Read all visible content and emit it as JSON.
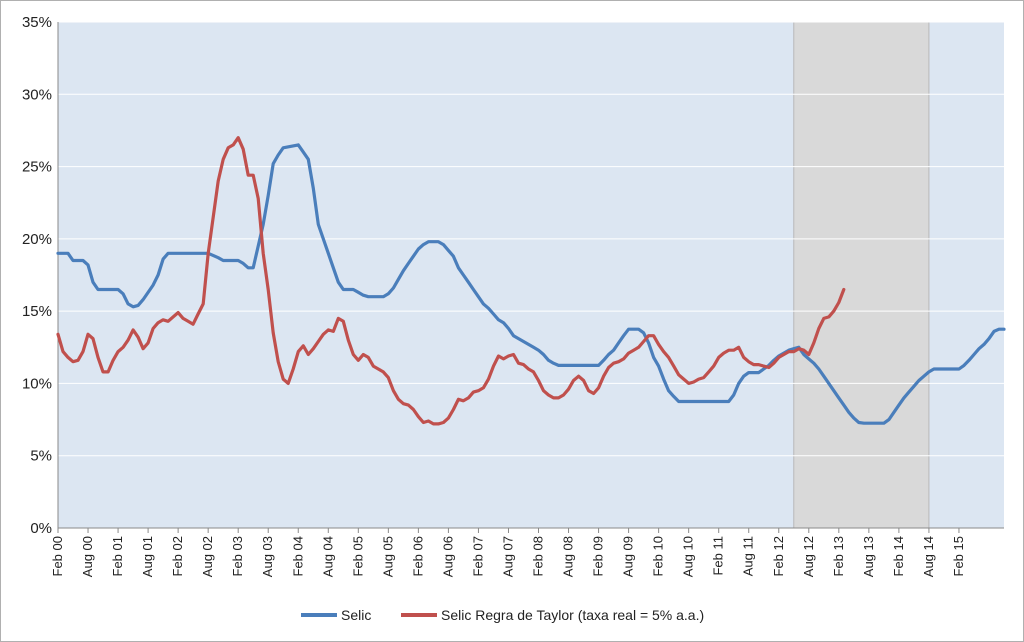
{
  "chart_data": {
    "type": "line",
    "title": "",
    "xlabel": "",
    "ylabel": "",
    "x_start": "Feb 00",
    "months_total": 190,
    "ylim": [
      0,
      35
    ],
    "y_ticks": [
      "0%",
      "5%",
      "10%",
      "15%",
      "20%",
      "25%",
      "30%",
      "35%"
    ],
    "x_tick_labels": [
      "Feb 00",
      "Aug 00",
      "Feb 01",
      "Aug 01",
      "Feb 02",
      "Aug 02",
      "Feb 03",
      "Aug 03",
      "Feb 04",
      "Aug 04",
      "Feb 05",
      "Aug 05",
      "Feb 06",
      "Aug 06",
      "Feb 07",
      "Aug 07",
      "Feb 08",
      "Aug 08",
      "Feb 09",
      "Aug 09",
      "Feb 10",
      "Aug 10",
      "Feb 11",
      "Aug 11",
      "Feb 12",
      "Aug 12",
      "Feb 13",
      "Aug 13",
      "Feb 14",
      "Aug 14",
      "Feb 15"
    ],
    "shaded_region": {
      "from_month": 147,
      "to_month": 174,
      "color": "#d9d9d9"
    },
    "colors": {
      "plot_bg": "#dce6f2",
      "grid": "#ffffff"
    },
    "legend_position": "bottom",
    "series": [
      {
        "name": "Selic",
        "color": "#4a7ebb",
        "points": [
          [
            0,
            19
          ],
          [
            2,
            19
          ],
          [
            3,
            18.5
          ],
          [
            5,
            18.5
          ],
          [
            6,
            18.2
          ],
          [
            7,
            17
          ],
          [
            8,
            16.5
          ],
          [
            12,
            16.5
          ],
          [
            13,
            16.2
          ],
          [
            14,
            15.5
          ],
          [
            15,
            15.3
          ],
          [
            16,
            15.4
          ],
          [
            17,
            15.8
          ],
          [
            19,
            16.8
          ],
          [
            20,
            17.5
          ],
          [
            21,
            18.6
          ],
          [
            22,
            19
          ],
          [
            30,
            19
          ],
          [
            32,
            18.7
          ],
          [
            33,
            18.5
          ],
          [
            36,
            18.5
          ],
          [
            37,
            18.3
          ],
          [
            38,
            18
          ],
          [
            39,
            18
          ],
          [
            40,
            19.5
          ],
          [
            41,
            21
          ],
          [
            42,
            23
          ],
          [
            43,
            25.2
          ],
          [
            44,
            25.8
          ],
          [
            45,
            26.3
          ],
          [
            48,
            26.5
          ],
          [
            49,
            26
          ],
          [
            50,
            25.5
          ],
          [
            51,
            23.5
          ],
          [
            52,
            21
          ],
          [
            53,
            20
          ],
          [
            54,
            19
          ],
          [
            55,
            18
          ],
          [
            56,
            17
          ],
          [
            57,
            16.5
          ],
          [
            59,
            16.5
          ],
          [
            60,
            16.3
          ],
          [
            61,
            16.1
          ],
          [
            62,
            16
          ],
          [
            65,
            16
          ],
          [
            66,
            16.2
          ],
          [
            67,
            16.6
          ],
          [
            68,
            17.2
          ],
          [
            69,
            17.8
          ],
          [
            70,
            18.3
          ],
          [
            71,
            18.8
          ],
          [
            72,
            19.3
          ],
          [
            73,
            19.6
          ],
          [
            74,
            19.8
          ],
          [
            76,
            19.8
          ],
          [
            77,
            19.6
          ],
          [
            78,
            19.2
          ],
          [
            79,
            18.8
          ],
          [
            80,
            18
          ],
          [
            81,
            17.5
          ],
          [
            82,
            17
          ],
          [
            83,
            16.5
          ],
          [
            84,
            16
          ],
          [
            85,
            15.5
          ],
          [
            86,
            15.2
          ],
          [
            87,
            14.8
          ],
          [
            88,
            14.4
          ],
          [
            89,
            14.2
          ],
          [
            90,
            13.8
          ],
          [
            91,
            13.3
          ],
          [
            92,
            13.1
          ],
          [
            93,
            12.9
          ],
          [
            94,
            12.7
          ],
          [
            95,
            12.5
          ],
          [
            96,
            12.3
          ],
          [
            97,
            12
          ],
          [
            98,
            11.6
          ],
          [
            99,
            11.4
          ],
          [
            100,
            11.25
          ],
          [
            108,
            11.25
          ],
          [
            109,
            11.6
          ],
          [
            110,
            12
          ],
          [
            111,
            12.3
          ],
          [
            112,
            12.8
          ],
          [
            113,
            13.3
          ],
          [
            114,
            13.75
          ],
          [
            116,
            13.75
          ],
          [
            117,
            13.5
          ],
          [
            118,
            12.8
          ],
          [
            119,
            11.8
          ],
          [
            120,
            11.2
          ],
          [
            121,
            10.3
          ],
          [
            122,
            9.5
          ],
          [
            123,
            9.1
          ],
          [
            124,
            8.75
          ],
          [
            134,
            8.75
          ],
          [
            135,
            9.2
          ],
          [
            136,
            10
          ],
          [
            137,
            10.5
          ],
          [
            138,
            10.75
          ],
          [
            140,
            10.75
          ],
          [
            141,
            11
          ],
          [
            142,
            11.25
          ],
          [
            143,
            11.6
          ],
          [
            144,
            11.9
          ],
          [
            145,
            12.1
          ],
          [
            146,
            12.3
          ],
          [
            147,
            12.4
          ],
          [
            148,
            12.5
          ],
          [
            149,
            12
          ],
          [
            150,
            11.7
          ],
          [
            151,
            11.4
          ],
          [
            152,
            11
          ],
          [
            153,
            10.5
          ],
          [
            154,
            10
          ],
          [
            155,
            9.5
          ],
          [
            156,
            9
          ],
          [
            157,
            8.5
          ],
          [
            158,
            8
          ],
          [
            159,
            7.6
          ],
          [
            160,
            7.3
          ],
          [
            161,
            7.25
          ],
          [
            165,
            7.25
          ],
          [
            166,
            7.5
          ],
          [
            167,
            8
          ],
          [
            168,
            8.5
          ],
          [
            169,
            9
          ],
          [
            170,
            9.4
          ],
          [
            171,
            9.8
          ],
          [
            172,
            10.2
          ],
          [
            173,
            10.5
          ],
          [
            174,
            10.8
          ],
          [
            175,
            11
          ],
          [
            180,
            11
          ],
          [
            181,
            11.25
          ],
          [
            182,
            11.6
          ],
          [
            183,
            12
          ],
          [
            184,
            12.4
          ],
          [
            185,
            12.7
          ],
          [
            186,
            13.1
          ],
          [
            187,
            13.6
          ],
          [
            188,
            13.75
          ],
          [
            189,
            13.75
          ]
        ]
      },
      {
        "name": "Selic Regra de Taylor (taxa real = 5% a.a.)",
        "color": "#c0504d",
        "points": [
          [
            0,
            13.4
          ],
          [
            1,
            12.2
          ],
          [
            2,
            11.8
          ],
          [
            3,
            11.5
          ],
          [
            4,
            11.6
          ],
          [
            5,
            12.2
          ],
          [
            6,
            13.4
          ],
          [
            7,
            13.1
          ],
          [
            8,
            11.8
          ],
          [
            9,
            10.8
          ],
          [
            10,
            10.8
          ],
          [
            11,
            11.6
          ],
          [
            12,
            12.2
          ],
          [
            13,
            12.5
          ],
          [
            14,
            13
          ],
          [
            15,
            13.7
          ],
          [
            16,
            13.2
          ],
          [
            17,
            12.4
          ],
          [
            18,
            12.8
          ],
          [
            19,
            13.8
          ],
          [
            20,
            14.2
          ],
          [
            21,
            14.4
          ],
          [
            22,
            14.3
          ],
          [
            23,
            14.6
          ],
          [
            24,
            14.9
          ],
          [
            25,
            14.5
          ],
          [
            26,
            14.3
          ],
          [
            27,
            14.1
          ],
          [
            28,
            14.8
          ],
          [
            29,
            15.5
          ],
          [
            30,
            19
          ],
          [
            31,
            21.5
          ],
          [
            32,
            24
          ],
          [
            33,
            25.5
          ],
          [
            34,
            26.3
          ],
          [
            35,
            26.5
          ],
          [
            36,
            27
          ],
          [
            37,
            26.2
          ],
          [
            38,
            24.4
          ],
          [
            39,
            24.4
          ],
          [
            40,
            22.8
          ],
          [
            41,
            19
          ],
          [
            42,
            16.5
          ],
          [
            43,
            13.5
          ],
          [
            44,
            11.5
          ],
          [
            45,
            10.3
          ],
          [
            46,
            10
          ],
          [
            47,
            11
          ],
          [
            48,
            12.2
          ],
          [
            49,
            12.6
          ],
          [
            50,
            12
          ],
          [
            51,
            12.4
          ],
          [
            52,
            12.9
          ],
          [
            53,
            13.4
          ],
          [
            54,
            13.7
          ],
          [
            55,
            13.6
          ],
          [
            56,
            14.5
          ],
          [
            57,
            14.3
          ],
          [
            58,
            13
          ],
          [
            59,
            12
          ],
          [
            60,
            11.6
          ],
          [
            61,
            12
          ],
          [
            62,
            11.8
          ],
          [
            63,
            11.2
          ],
          [
            64,
            11
          ],
          [
            65,
            10.8
          ],
          [
            66,
            10.4
          ],
          [
            67,
            9.5
          ],
          [
            68,
            8.9
          ],
          [
            69,
            8.6
          ],
          [
            70,
            8.5
          ],
          [
            71,
            8.2
          ],
          [
            72,
            7.7
          ],
          [
            73,
            7.3
          ],
          [
            74,
            7.4
          ],
          [
            75,
            7.2
          ],
          [
            76,
            7.2
          ],
          [
            77,
            7.3
          ],
          [
            78,
            7.6
          ],
          [
            79,
            8.2
          ],
          [
            80,
            8.9
          ],
          [
            81,
            8.8
          ],
          [
            82,
            9
          ],
          [
            83,
            9.4
          ],
          [
            84,
            9.5
          ],
          [
            85,
            9.7
          ],
          [
            86,
            10.3
          ],
          [
            87,
            11.2
          ],
          [
            88,
            11.9
          ],
          [
            89,
            11.7
          ],
          [
            90,
            11.9
          ],
          [
            91,
            12
          ],
          [
            92,
            11.4
          ],
          [
            93,
            11.3
          ],
          [
            94,
            11
          ],
          [
            95,
            10.8
          ],
          [
            96,
            10.2
          ],
          [
            97,
            9.5
          ],
          [
            98,
            9.2
          ],
          [
            99,
            9
          ],
          [
            100,
            9
          ],
          [
            101,
            9.2
          ],
          [
            102,
            9.6
          ],
          [
            103,
            10.2
          ],
          [
            104,
            10.5
          ],
          [
            105,
            10.2
          ],
          [
            106,
            9.5
          ],
          [
            107,
            9.3
          ],
          [
            108,
            9.7
          ],
          [
            109,
            10.5
          ],
          [
            110,
            11.1
          ],
          [
            111,
            11.4
          ],
          [
            112,
            11.5
          ],
          [
            113,
            11.7
          ],
          [
            114,
            12.1
          ],
          [
            115,
            12.3
          ],
          [
            116,
            12.5
          ],
          [
            117,
            12.9
          ],
          [
            118,
            13.3
          ],
          [
            119,
            13.3
          ],
          [
            120,
            12.7
          ],
          [
            121,
            12.2
          ],
          [
            122,
            11.8
          ],
          [
            123,
            11.2
          ],
          [
            124,
            10.6
          ],
          [
            125,
            10.3
          ],
          [
            126,
            10
          ],
          [
            127,
            10.1
          ],
          [
            128,
            10.3
          ],
          [
            129,
            10.4
          ],
          [
            130,
            10.8
          ],
          [
            131,
            11.2
          ],
          [
            132,
            11.8
          ],
          [
            133,
            12.1
          ],
          [
            134,
            12.3
          ],
          [
            135,
            12.3
          ],
          [
            136,
            12.5
          ],
          [
            137,
            11.8
          ],
          [
            138,
            11.5
          ],
          [
            139,
            11.3
          ],
          [
            140,
            11.3
          ],
          [
            141,
            11.2
          ],
          [
            142,
            11.1
          ],
          [
            143,
            11.4
          ],
          [
            144,
            11.8
          ],
          [
            145,
            12
          ],
          [
            146,
            12.2
          ],
          [
            147,
            12.2
          ],
          [
            148,
            12.4
          ],
          [
            149,
            12.3
          ],
          [
            150,
            12
          ],
          [
            151,
            12.8
          ],
          [
            152,
            13.8
          ],
          [
            153,
            14.5
          ],
          [
            154,
            14.6
          ],
          [
            155,
            15
          ],
          [
            156,
            15.6
          ],
          [
            157,
            16.5
          ]
        ]
      }
    ]
  }
}
